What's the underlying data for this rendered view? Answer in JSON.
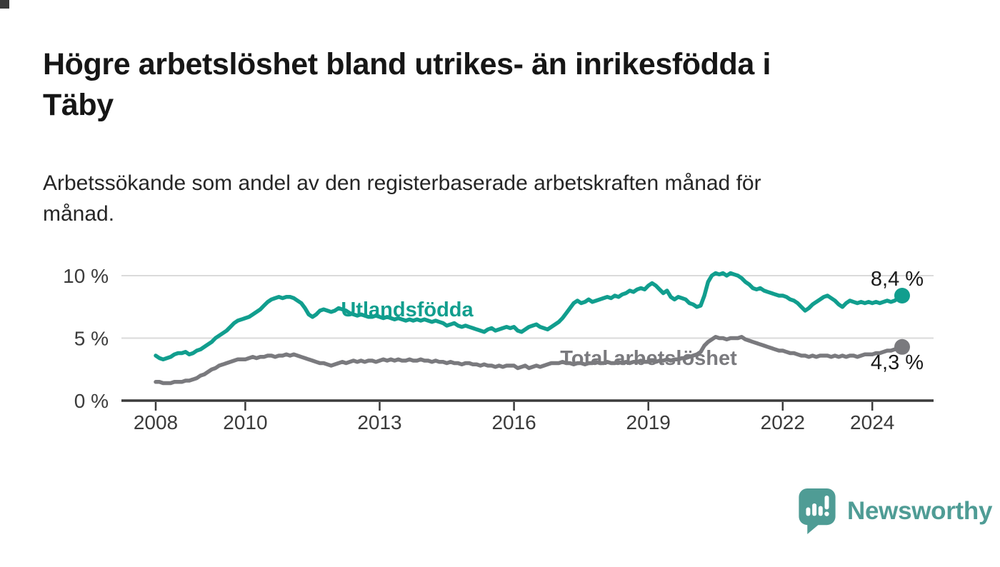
{
  "title": {
    "lines": [
      "Högre arbetslöshet bland utrikes- än inrikesfödda i",
      "Täby"
    ]
  },
  "subtitle": {
    "lines": [
      "Arbetssökande som andel av den registerbaserade arbetskraften månad för",
      "månad."
    ]
  },
  "branding": {
    "logo_text": "Newsworthy",
    "logo_icon": "newsworthy-speech-bubble-bar-chart-icon",
    "logo_color": "#4f9c95"
  },
  "colors": {
    "foreign_born_line": "#119e8e",
    "total_line": "#7a7a7e",
    "gridline": "#dadada",
    "axis": "#3b3b3b",
    "value_label": "#1a1a1a"
  },
  "chart_data": {
    "type": "line",
    "unit": "%",
    "frequency": "monthly",
    "x_start_year": 2008,
    "points_per_year": 12,
    "grid": "horizontal-only",
    "x_axis": {
      "ticks": [
        {
          "label": "2008",
          "year": 2008
        },
        {
          "label": "2010",
          "year": 2010
        },
        {
          "label": "2013",
          "year": 2013
        },
        {
          "label": "2016",
          "year": 2016
        },
        {
          "label": "2019",
          "year": 2019
        },
        {
          "label": "2022",
          "year": 2022
        },
        {
          "label": "2024",
          "year": 2024
        }
      ]
    },
    "y_axis": {
      "range": [
        0,
        10.5
      ],
      "ticks": [
        {
          "label": "0 %",
          "value": 0
        },
        {
          "label": "5 %",
          "value": 5
        },
        {
          "label": "10 %",
          "value": 10
        }
      ]
    },
    "series": [
      {
        "name": "Utlandsfödda",
        "color": "#119e8e",
        "end_label": "8,4 %",
        "end_value": 8.4,
        "values": [
          3.6,
          3.4,
          3.3,
          3.4,
          3.5,
          3.7,
          3.8,
          3.8,
          3.9,
          3.7,
          3.8,
          4.0,
          4.1,
          4.3,
          4.5,
          4.7,
          5.0,
          5.2,
          5.4,
          5.6,
          5.9,
          6.2,
          6.4,
          6.5,
          6.6,
          6.7,
          6.9,
          7.1,
          7.3,
          7.6,
          7.9,
          8.1,
          8.2,
          8.3,
          8.2,
          8.3,
          8.3,
          8.2,
          8.0,
          7.8,
          7.4,
          6.9,
          6.7,
          6.9,
          7.2,
          7.3,
          7.2,
          7.1,
          7.2,
          7.4,
          7.3,
          7.2,
          7.0,
          6.9,
          6.8,
          6.9,
          6.8,
          6.7,
          6.7,
          6.8,
          6.7,
          6.6,
          6.7,
          6.6,
          6.5,
          6.6,
          6.5,
          6.4,
          6.5,
          6.4,
          6.5,
          6.4,
          6.5,
          6.4,
          6.3,
          6.4,
          6.3,
          6.2,
          6.0,
          6.1,
          6.2,
          6.0,
          5.9,
          6.0,
          5.9,
          5.8,
          5.7,
          5.6,
          5.5,
          5.7,
          5.8,
          5.6,
          5.7,
          5.8,
          5.9,
          5.8,
          5.9,
          5.6,
          5.5,
          5.7,
          5.9,
          6.0,
          6.1,
          5.9,
          5.8,
          5.7,
          5.9,
          6.1,
          6.3,
          6.6,
          7.0,
          7.4,
          7.8,
          8.0,
          7.8,
          7.9,
          8.1,
          7.9,
          8.0,
          8.1,
          8.2,
          8.3,
          8.2,
          8.4,
          8.3,
          8.5,
          8.6,
          8.8,
          8.7,
          8.9,
          9.0,
          8.9,
          9.2,
          9.4,
          9.2,
          8.9,
          8.6,
          8.8,
          8.3,
          8.1,
          8.3,
          8.2,
          8.1,
          7.8,
          7.7,
          7.5,
          7.6,
          8.4,
          9.5,
          10.0,
          10.2,
          10.1,
          10.2,
          10.0,
          10.2,
          10.1,
          10.0,
          9.8,
          9.5,
          9.3,
          9.0,
          8.9,
          9.0,
          8.8,
          8.7,
          8.6,
          8.5,
          8.4,
          8.4,
          8.3,
          8.1,
          8.0,
          7.8,
          7.5,
          7.2,
          7.4,
          7.7,
          7.9,
          8.1,
          8.3,
          8.4,
          8.2,
          8.0,
          7.7,
          7.5,
          7.8,
          8.0,
          7.9,
          7.8,
          7.9,
          7.8,
          7.9,
          7.8,
          7.9,
          7.8,
          7.9,
          8.0,
          7.9,
          8.0,
          8.2,
          8.4
        ]
      },
      {
        "name": "Total arbetslöshet",
        "color": "#7a7a7e",
        "end_label": "4,3 %",
        "end_value": 4.3,
        "values": [
          1.5,
          1.5,
          1.4,
          1.4,
          1.4,
          1.5,
          1.5,
          1.5,
          1.6,
          1.6,
          1.7,
          1.8,
          2.0,
          2.1,
          2.3,
          2.5,
          2.6,
          2.8,
          2.9,
          3.0,
          3.1,
          3.2,
          3.3,
          3.3,
          3.3,
          3.4,
          3.5,
          3.4,
          3.5,
          3.5,
          3.6,
          3.6,
          3.5,
          3.6,
          3.6,
          3.7,
          3.6,
          3.7,
          3.6,
          3.5,
          3.4,
          3.3,
          3.2,
          3.1,
          3.0,
          3.0,
          2.9,
          2.8,
          2.9,
          3.0,
          3.1,
          3.0,
          3.1,
          3.2,
          3.1,
          3.2,
          3.1,
          3.2,
          3.2,
          3.1,
          3.2,
          3.3,
          3.2,
          3.3,
          3.2,
          3.3,
          3.2,
          3.2,
          3.3,
          3.2,
          3.2,
          3.3,
          3.2,
          3.2,
          3.1,
          3.2,
          3.1,
          3.1,
          3.0,
          3.1,
          3.0,
          3.0,
          2.9,
          3.0,
          3.0,
          2.9,
          2.9,
          2.8,
          2.9,
          2.8,
          2.8,
          2.7,
          2.8,
          2.7,
          2.8,
          2.8,
          2.8,
          2.6,
          2.7,
          2.8,
          2.6,
          2.7,
          2.8,
          2.7,
          2.8,
          2.9,
          3.0,
          3.0,
          3.0,
          3.1,
          3.0,
          3.0,
          2.9,
          3.0,
          3.0,
          2.9,
          3.0,
          3.0,
          3.1,
          3.0,
          3.0,
          3.1,
          3.0,
          3.0,
          3.1,
          3.0,
          3.1,
          3.0,
          3.1,
          3.1,
          3.2,
          3.1,
          3.1,
          3.2,
          3.1,
          3.2,
          3.2,
          3.3,
          3.2,
          3.3,
          3.3,
          3.4,
          3.4,
          3.5,
          3.6,
          3.7,
          3.9,
          4.4,
          4.7,
          4.9,
          5.1,
          5.0,
          5.0,
          4.9,
          5.0,
          5.0,
          5.0,
          5.1,
          4.9,
          4.8,
          4.7,
          4.6,
          4.5,
          4.4,
          4.3,
          4.2,
          4.1,
          4.0,
          4.0,
          3.9,
          3.8,
          3.8,
          3.7,
          3.6,
          3.6,
          3.5,
          3.6,
          3.5,
          3.6,
          3.6,
          3.6,
          3.5,
          3.6,
          3.5,
          3.6,
          3.5,
          3.6,
          3.6,
          3.5,
          3.6,
          3.7,
          3.7,
          3.7,
          3.8,
          3.8,
          3.9,
          4.0,
          4.0,
          4.1,
          4.2,
          4.3
        ]
      }
    ]
  }
}
